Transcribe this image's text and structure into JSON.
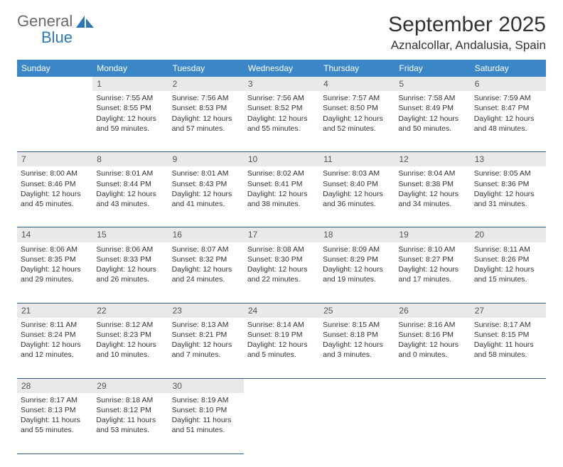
{
  "brand": {
    "general": "General",
    "blue": "Blue",
    "sail_color": "#2f78b7"
  },
  "title": "September 2025",
  "location": "Aznalcollar, Andalusia, Spain",
  "colors": {
    "header_bg": "#3b86c6",
    "header_fg": "#ffffff",
    "daynum_bg": "#e9e9e9",
    "rule": "#2f5f88"
  },
  "daysOfWeek": [
    "Sunday",
    "Monday",
    "Tuesday",
    "Wednesday",
    "Thursday",
    "Friday",
    "Saturday"
  ],
  "weeks": [
    {
      "nums": [
        "",
        "1",
        "2",
        "3",
        "4",
        "5",
        "6"
      ],
      "cells": [
        null,
        {
          "sr": "Sunrise: 7:55 AM",
          "ss": "Sunset: 8:55 PM",
          "d1": "Daylight: 12 hours",
          "d2": "and 59 minutes."
        },
        {
          "sr": "Sunrise: 7:56 AM",
          "ss": "Sunset: 8:53 PM",
          "d1": "Daylight: 12 hours",
          "d2": "and 57 minutes."
        },
        {
          "sr": "Sunrise: 7:56 AM",
          "ss": "Sunset: 8:52 PM",
          "d1": "Daylight: 12 hours",
          "d2": "and 55 minutes."
        },
        {
          "sr": "Sunrise: 7:57 AM",
          "ss": "Sunset: 8:50 PM",
          "d1": "Daylight: 12 hours",
          "d2": "and 52 minutes."
        },
        {
          "sr": "Sunrise: 7:58 AM",
          "ss": "Sunset: 8:49 PM",
          "d1": "Daylight: 12 hours",
          "d2": "and 50 minutes."
        },
        {
          "sr": "Sunrise: 7:59 AM",
          "ss": "Sunset: 8:47 PM",
          "d1": "Daylight: 12 hours",
          "d2": "and 48 minutes."
        }
      ]
    },
    {
      "nums": [
        "7",
        "8",
        "9",
        "10",
        "11",
        "12",
        "13"
      ],
      "cells": [
        {
          "sr": "Sunrise: 8:00 AM",
          "ss": "Sunset: 8:46 PM",
          "d1": "Daylight: 12 hours",
          "d2": "and 45 minutes."
        },
        {
          "sr": "Sunrise: 8:01 AM",
          "ss": "Sunset: 8:44 PM",
          "d1": "Daylight: 12 hours",
          "d2": "and 43 minutes."
        },
        {
          "sr": "Sunrise: 8:01 AM",
          "ss": "Sunset: 8:43 PM",
          "d1": "Daylight: 12 hours",
          "d2": "and 41 minutes."
        },
        {
          "sr": "Sunrise: 8:02 AM",
          "ss": "Sunset: 8:41 PM",
          "d1": "Daylight: 12 hours",
          "d2": "and 38 minutes."
        },
        {
          "sr": "Sunrise: 8:03 AM",
          "ss": "Sunset: 8:40 PM",
          "d1": "Daylight: 12 hours",
          "d2": "and 36 minutes."
        },
        {
          "sr": "Sunrise: 8:04 AM",
          "ss": "Sunset: 8:38 PM",
          "d1": "Daylight: 12 hours",
          "d2": "and 34 minutes."
        },
        {
          "sr": "Sunrise: 8:05 AM",
          "ss": "Sunset: 8:36 PM",
          "d1": "Daylight: 12 hours",
          "d2": "and 31 minutes."
        }
      ]
    },
    {
      "nums": [
        "14",
        "15",
        "16",
        "17",
        "18",
        "19",
        "20"
      ],
      "cells": [
        {
          "sr": "Sunrise: 8:06 AM",
          "ss": "Sunset: 8:35 PM",
          "d1": "Daylight: 12 hours",
          "d2": "and 29 minutes."
        },
        {
          "sr": "Sunrise: 8:06 AM",
          "ss": "Sunset: 8:33 PM",
          "d1": "Daylight: 12 hours",
          "d2": "and 26 minutes."
        },
        {
          "sr": "Sunrise: 8:07 AM",
          "ss": "Sunset: 8:32 PM",
          "d1": "Daylight: 12 hours",
          "d2": "and 24 minutes."
        },
        {
          "sr": "Sunrise: 8:08 AM",
          "ss": "Sunset: 8:30 PM",
          "d1": "Daylight: 12 hours",
          "d2": "and 22 minutes."
        },
        {
          "sr": "Sunrise: 8:09 AM",
          "ss": "Sunset: 8:29 PM",
          "d1": "Daylight: 12 hours",
          "d2": "and 19 minutes."
        },
        {
          "sr": "Sunrise: 8:10 AM",
          "ss": "Sunset: 8:27 PM",
          "d1": "Daylight: 12 hours",
          "d2": "and 17 minutes."
        },
        {
          "sr": "Sunrise: 8:11 AM",
          "ss": "Sunset: 8:26 PM",
          "d1": "Daylight: 12 hours",
          "d2": "and 15 minutes."
        }
      ]
    },
    {
      "nums": [
        "21",
        "22",
        "23",
        "24",
        "25",
        "26",
        "27"
      ],
      "cells": [
        {
          "sr": "Sunrise: 8:11 AM",
          "ss": "Sunset: 8:24 PM",
          "d1": "Daylight: 12 hours",
          "d2": "and 12 minutes."
        },
        {
          "sr": "Sunrise: 8:12 AM",
          "ss": "Sunset: 8:23 PM",
          "d1": "Daylight: 12 hours",
          "d2": "and 10 minutes."
        },
        {
          "sr": "Sunrise: 8:13 AM",
          "ss": "Sunset: 8:21 PM",
          "d1": "Daylight: 12 hours",
          "d2": "and 7 minutes."
        },
        {
          "sr": "Sunrise: 8:14 AM",
          "ss": "Sunset: 8:19 PM",
          "d1": "Daylight: 12 hours",
          "d2": "and 5 minutes."
        },
        {
          "sr": "Sunrise: 8:15 AM",
          "ss": "Sunset: 8:18 PM",
          "d1": "Daylight: 12 hours",
          "d2": "and 3 minutes."
        },
        {
          "sr": "Sunrise: 8:16 AM",
          "ss": "Sunset: 8:16 PM",
          "d1": "Daylight: 12 hours",
          "d2": "and 0 minutes."
        },
        {
          "sr": "Sunrise: 8:17 AM",
          "ss": "Sunset: 8:15 PM",
          "d1": "Daylight: 11 hours",
          "d2": "and 58 minutes."
        }
      ]
    },
    {
      "nums": [
        "28",
        "29",
        "30",
        "",
        "",
        "",
        ""
      ],
      "cells": [
        {
          "sr": "Sunrise: 8:17 AM",
          "ss": "Sunset: 8:13 PM",
          "d1": "Daylight: 11 hours",
          "d2": "and 55 minutes."
        },
        {
          "sr": "Sunrise: 8:18 AM",
          "ss": "Sunset: 8:12 PM",
          "d1": "Daylight: 11 hours",
          "d2": "and 53 minutes."
        },
        {
          "sr": "Sunrise: 8:19 AM",
          "ss": "Sunset: 8:10 PM",
          "d1": "Daylight: 11 hours",
          "d2": "and 51 minutes."
        },
        null,
        null,
        null,
        null
      ]
    }
  ]
}
